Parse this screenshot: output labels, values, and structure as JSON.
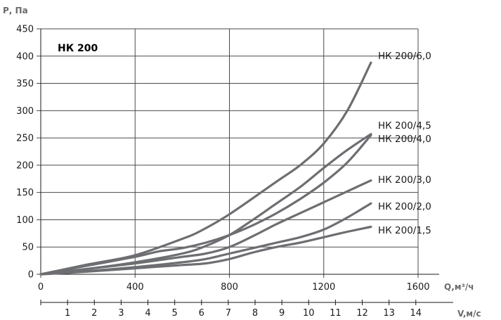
{
  "chart_data": {
    "type": "line",
    "title": "НК 200",
    "ylabel": "Р, Па",
    "xlabel": "Q,м³/ч",
    "x2label": "V,м/с",
    "xlim": [
      0,
      1600
    ],
    "ylim": [
      0,
      450
    ],
    "grid": true,
    "xticks": [
      0,
      400,
      800,
      1200,
      1600
    ],
    "yticks": [
      0,
      50,
      100,
      150,
      200,
      250,
      300,
      350,
      400,
      450
    ],
    "x2ticks": [
      1,
      2,
      3,
      4,
      5,
      6,
      7,
      8,
      9,
      10,
      11,
      12,
      13,
      14
    ],
    "x2_per_unit": 113.6,
    "series": [
      {
        "name": "НК 200/6,0",
        "x": [
          0,
          200,
          400,
          600,
          680,
          800,
          1000,
          1100,
          1200,
          1300,
          1400
        ],
        "y": [
          0,
          18,
          35,
          65,
          80,
          110,
          170,
          200,
          240,
          300,
          388
        ]
      },
      {
        "name": "НК 200/4,5",
        "x": [
          0,
          200,
          400,
          600,
          700,
          800,
          900,
          1000,
          1100,
          1200,
          1300,
          1400
        ],
        "y": [
          0,
          10,
          22,
          38,
          52,
          72,
          100,
          130,
          160,
          195,
          228,
          257
        ]
      },
      {
        "name": "НК 200/4,0",
        "x": [
          0,
          200,
          400,
          500,
          600,
          700,
          800,
          900,
          1000,
          1100,
          1200,
          1300,
          1400
        ],
        "y": [
          0,
          16,
          32,
          42,
          48,
          58,
          72,
          90,
          112,
          138,
          168,
          205,
          255
        ]
      },
      {
        "name": "НК 200/3,0",
        "x": [
          0,
          200,
          400,
          600,
          700,
          800,
          900,
          1000,
          1100,
          1200,
          1300,
          1400
        ],
        "y": [
          0,
          10,
          20,
          32,
          38,
          50,
          70,
          92,
          112,
          132,
          152,
          172
        ]
      },
      {
        "name": "НК 200/2,0",
        "x": [
          0,
          200,
          400,
          600,
          700,
          800,
          900,
          1000,
          1100,
          1200,
          1300,
          1400
        ],
        "y": [
          0,
          6,
          13,
          22,
          28,
          38,
          48,
          58,
          68,
          82,
          104,
          130
        ]
      },
      {
        "name": "НК 200/1,5",
        "x": [
          0,
          200,
          400,
          600,
          700,
          800,
          900,
          1000,
          1100,
          1200,
          1300,
          1400
        ],
        "y": [
          0,
          5,
          11,
          17,
          20,
          28,
          40,
          50,
          58,
          68,
          78,
          87
        ]
      }
    ],
    "colors": {
      "line": "#6d6e72",
      "grid": "#4a4a4a",
      "axis": "#1a1a1a",
      "axis_title": "#6b6b6b"
    }
  }
}
